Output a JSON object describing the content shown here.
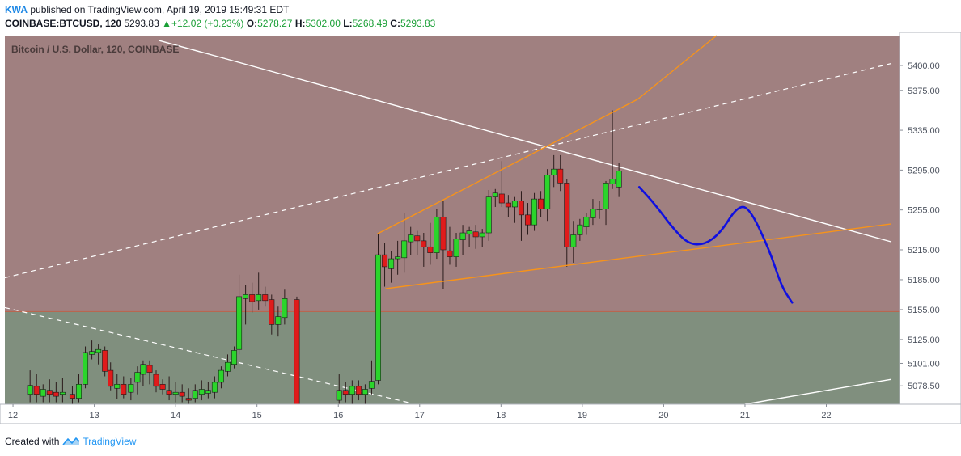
{
  "header": {
    "author": "KWA",
    "published_text": "published on TradingView.com, April 19, 2019 15:49:31 EDT",
    "symbol": "COINBASE:BTCUSD, 120",
    "last": "5293.83",
    "change": "+12.02 (+0.23%)",
    "open_label": "O:",
    "open": "5278.27",
    "high_label": "H:",
    "high": "5302.00",
    "low_label": "L:",
    "low": "5268.49",
    "close_label": "C:",
    "close": "5293.83"
  },
  "footer": {
    "created_with": "Created with",
    "brand": "TradingView",
    "logo_icon": "tradingview-logo-icon"
  },
  "colors": {
    "upper_zone": "#a08080",
    "lower_zone": "#808f7e",
    "zone_line": "#c0604a",
    "up_candle": "#2bd52b",
    "down_candle": "#e01b1b",
    "white_line": "#ffffff",
    "orange_line": "#f7931a",
    "blue_path": "#1010e0"
  },
  "chart_data": {
    "type": "candlestick",
    "title": "Bitcoin / U.S. Dollar, 120, COINBASE",
    "y_ticks": [
      "5400.00",
      "5375.00",
      "5335.00",
      "5295.00",
      "5255.00",
      "5215.00",
      "5185.00",
      "5155.00",
      "5125.00",
      "5101.00",
      "5078.50"
    ],
    "x_ticks": [
      "12",
      "13",
      "14",
      "15",
      "16",
      "17",
      "18",
      "19",
      "20",
      "21",
      "22"
    ],
    "ylim": [
      5060,
      5430
    ],
    "xlim": [
      11.9,
      22.9
    ],
    "zone_boundary": 5153,
    "candles": [
      {
        "t": 12.21,
        "o": 5070,
        "h": 5094,
        "l": 5062,
        "c": 5079
      },
      {
        "t": 12.29,
        "o": 5078,
        "h": 5090,
        "l": 5062,
        "c": 5070
      },
      {
        "t": 12.37,
        "o": 5068,
        "h": 5080,
        "l": 5062,
        "c": 5075
      },
      {
        "t": 12.45,
        "o": 5074,
        "h": 5085,
        "l": 5062,
        "c": 5070
      },
      {
        "t": 12.53,
        "o": 5072,
        "h": 5082,
        "l": 5062,
        "c": 5068
      },
      {
        "t": 12.61,
        "o": 5070,
        "h": 5086,
        "l": 5062,
        "c": 5072
      },
      {
        "t": 12.73,
        "o": 5070,
        "h": 5078,
        "l": 5060,
        "c": 5066
      },
      {
        "t": 12.81,
        "o": 5066,
        "h": 5090,
        "l": 5062,
        "c": 5080
      },
      {
        "t": 12.89,
        "o": 5080,
        "h": 5118,
        "l": 5076,
        "c": 5112
      },
      {
        "t": 12.97,
        "o": 5110,
        "h": 5124,
        "l": 5105,
        "c": 5113
      },
      {
        "t": 13.05,
        "o": 5112,
        "h": 5120,
        "l": 5100,
        "c": 5115
      },
      {
        "t": 13.13,
        "o": 5114,
        "h": 5118,
        "l": 5088,
        "c": 5093
      },
      {
        "t": 13.2,
        "o": 5094,
        "h": 5102,
        "l": 5074,
        "c": 5078
      },
      {
        "t": 13.28,
        "o": 5076,
        "h": 5090,
        "l": 5065,
        "c": 5080
      },
      {
        "t": 13.36,
        "o": 5080,
        "h": 5088,
        "l": 5066,
        "c": 5070
      },
      {
        "t": 13.45,
        "o": 5072,
        "h": 5086,
        "l": 5064,
        "c": 5080
      },
      {
        "t": 13.53,
        "o": 5082,
        "h": 5098,
        "l": 5070,
        "c": 5092
      },
      {
        "t": 13.6,
        "o": 5090,
        "h": 5104,
        "l": 5078,
        "c": 5100
      },
      {
        "t": 13.68,
        "o": 5099,
        "h": 5104,
        "l": 5080,
        "c": 5092
      },
      {
        "t": 13.76,
        "o": 5090,
        "h": 5094,
        "l": 5072,
        "c": 5078
      },
      {
        "t": 13.84,
        "o": 5080,
        "h": 5085,
        "l": 5070,
        "c": 5075
      },
      {
        "t": 13.92,
        "o": 5074,
        "h": 5088,
        "l": 5064,
        "c": 5070
      },
      {
        "t": 14.0,
        "o": 5070,
        "h": 5082,
        "l": 5062,
        "c": 5072
      },
      {
        "t": 14.08,
        "o": 5072,
        "h": 5080,
        "l": 5062,
        "c": 5068
      },
      {
        "t": 14.16,
        "o": 5066,
        "h": 5076,
        "l": 5060,
        "c": 5064
      },
      {
        "t": 14.24,
        "o": 5066,
        "h": 5080,
        "l": 5062,
        "c": 5074
      },
      {
        "t": 14.32,
        "o": 5070,
        "h": 5084,
        "l": 5064,
        "c": 5075
      },
      {
        "t": 14.4,
        "o": 5071,
        "h": 5082,
        "l": 5066,
        "c": 5074
      },
      {
        "t": 14.48,
        "o": 5072,
        "h": 5088,
        "l": 5066,
        "c": 5082
      },
      {
        "t": 14.56,
        "o": 5082,
        "h": 5098,
        "l": 5076,
        "c": 5094
      },
      {
        "t": 14.64,
        "o": 5093,
        "h": 5110,
        "l": 5088,
        "c": 5102
      },
      {
        "t": 14.72,
        "o": 5100,
        "h": 5118,
        "l": 5096,
        "c": 5114
      },
      {
        "t": 14.78,
        "o": 5115,
        "h": 5190,
        "l": 5110,
        "c": 5168
      },
      {
        "t": 14.86,
        "o": 5166,
        "h": 5180,
        "l": 5140,
        "c": 5170
      },
      {
        "t": 14.94,
        "o": 5170,
        "h": 5182,
        "l": 5152,
        "c": 5163
      },
      {
        "t": 15.02,
        "o": 5164,
        "h": 5192,
        "l": 5155,
        "c": 5170
      },
      {
        "t": 15.1,
        "o": 5170,
        "h": 5178,
        "l": 5158,
        "c": 5164
      },
      {
        "t": 15.18,
        "o": 5165,
        "h": 5170,
        "l": 5130,
        "c": 5140
      },
      {
        "t": 15.26,
        "o": 5140,
        "h": 5158,
        "l": 5128,
        "c": 5148
      },
      {
        "t": 15.34,
        "o": 5147,
        "h": 5175,
        "l": 5140,
        "c": 5166
      },
      {
        "t": 15.49,
        "o": 5165,
        "h": 5168,
        "l": 5060,
        "c": 5060
      },
      {
        "t": 16.01,
        "o": 5064,
        "h": 5090,
        "l": 5058,
        "c": 5074
      },
      {
        "t": 16.09,
        "o": 5074,
        "h": 5082,
        "l": 5062,
        "c": 5070
      },
      {
        "t": 16.17,
        "o": 5070,
        "h": 5084,
        "l": 5060,
        "c": 5078
      },
      {
        "t": 16.25,
        "o": 5078,
        "h": 5084,
        "l": 5064,
        "c": 5070
      },
      {
        "t": 16.33,
        "o": 5070,
        "h": 5080,
        "l": 5060,
        "c": 5075
      },
      {
        "t": 16.41,
        "o": 5076,
        "h": 5104,
        "l": 5070,
        "c": 5083
      },
      {
        "t": 16.49,
        "o": 5084,
        "h": 5232,
        "l": 5080,
        "c": 5210
      },
      {
        "t": 16.57,
        "o": 5210,
        "h": 5222,
        "l": 5178,
        "c": 5198
      },
      {
        "t": 16.65,
        "o": 5196,
        "h": 5214,
        "l": 5182,
        "c": 5206
      },
      {
        "t": 16.73,
        "o": 5206,
        "h": 5224,
        "l": 5190,
        "c": 5208
      },
      {
        "t": 16.81,
        "o": 5207,
        "h": 5252,
        "l": 5192,
        "c": 5224
      },
      {
        "t": 16.89,
        "o": 5223,
        "h": 5238,
        "l": 5210,
        "c": 5230
      },
      {
        "t": 16.97,
        "o": 5229,
        "h": 5234,
        "l": 5210,
        "c": 5224
      },
      {
        "t": 17.05,
        "o": 5224,
        "h": 5232,
        "l": 5198,
        "c": 5218
      },
      {
        "t": 17.13,
        "o": 5218,
        "h": 5242,
        "l": 5200,
        "c": 5212
      },
      {
        "t": 17.21,
        "o": 5212,
        "h": 5256,
        "l": 5206,
        "c": 5248
      },
      {
        "t": 17.29,
        "o": 5248,
        "h": 5264,
        "l": 5176,
        "c": 5215
      },
      {
        "t": 17.37,
        "o": 5214,
        "h": 5238,
        "l": 5200,
        "c": 5208
      },
      {
        "t": 17.45,
        "o": 5208,
        "h": 5232,
        "l": 5198,
        "c": 5226
      },
      {
        "t": 17.53,
        "o": 5225,
        "h": 5240,
        "l": 5210,
        "c": 5232
      },
      {
        "t": 17.61,
        "o": 5231,
        "h": 5238,
        "l": 5218,
        "c": 5234
      },
      {
        "t": 17.69,
        "o": 5233,
        "h": 5240,
        "l": 5216,
        "c": 5228
      },
      {
        "t": 17.77,
        "o": 5228,
        "h": 5236,
        "l": 5218,
        "c": 5232
      },
      {
        "t": 17.85,
        "o": 5232,
        "h": 5275,
        "l": 5224,
        "c": 5268
      },
      {
        "t": 17.93,
        "o": 5268,
        "h": 5276,
        "l": 5258,
        "c": 5272
      },
      {
        "t": 18.01,
        "o": 5271,
        "h": 5304,
        "l": 5258,
        "c": 5262
      },
      {
        "t": 18.09,
        "o": 5262,
        "h": 5270,
        "l": 5248,
        "c": 5258
      },
      {
        "t": 18.17,
        "o": 5258,
        "h": 5268,
        "l": 5242,
        "c": 5264
      },
      {
        "t": 18.25,
        "o": 5264,
        "h": 5274,
        "l": 5224,
        "c": 5250
      },
      {
        "t": 18.33,
        "o": 5250,
        "h": 5262,
        "l": 5230,
        "c": 5240
      },
      {
        "t": 18.41,
        "o": 5240,
        "h": 5272,
        "l": 5234,
        "c": 5266
      },
      {
        "t": 18.49,
        "o": 5266,
        "h": 5274,
        "l": 5248,
        "c": 5256
      },
      {
        "t": 18.57,
        "o": 5256,
        "h": 5296,
        "l": 5244,
        "c": 5290
      },
      {
        "t": 18.65,
        "o": 5290,
        "h": 5310,
        "l": 5278,
        "c": 5296
      },
      {
        "t": 18.73,
        "o": 5296,
        "h": 5310,
        "l": 5274,
        "c": 5282
      },
      {
        "t": 18.81,
        "o": 5282,
        "h": 5286,
        "l": 5198,
        "c": 5218
      },
      {
        "t": 18.89,
        "o": 5218,
        "h": 5244,
        "l": 5202,
        "c": 5230
      },
      {
        "t": 18.97,
        "o": 5230,
        "h": 5246,
        "l": 5224,
        "c": 5240
      },
      {
        "t": 19.05,
        "o": 5238,
        "h": 5252,
        "l": 5230,
        "c": 5248
      },
      {
        "t": 19.13,
        "o": 5247,
        "h": 5266,
        "l": 5240,
        "c": 5256
      },
      {
        "t": 19.21,
        "o": 5256,
        "h": 5264,
        "l": 5246,
        "c": 5256
      },
      {
        "t": 19.29,
        "o": 5256,
        "h": 5284,
        "l": 5240,
        "c": 5282
      },
      {
        "t": 19.37,
        "o": 5281,
        "h": 5355,
        "l": 5276,
        "c": 5286
      },
      {
        "t": 19.45,
        "o": 5278,
        "h": 5302,
        "l": 5268,
        "c": 5294
      }
    ]
  }
}
